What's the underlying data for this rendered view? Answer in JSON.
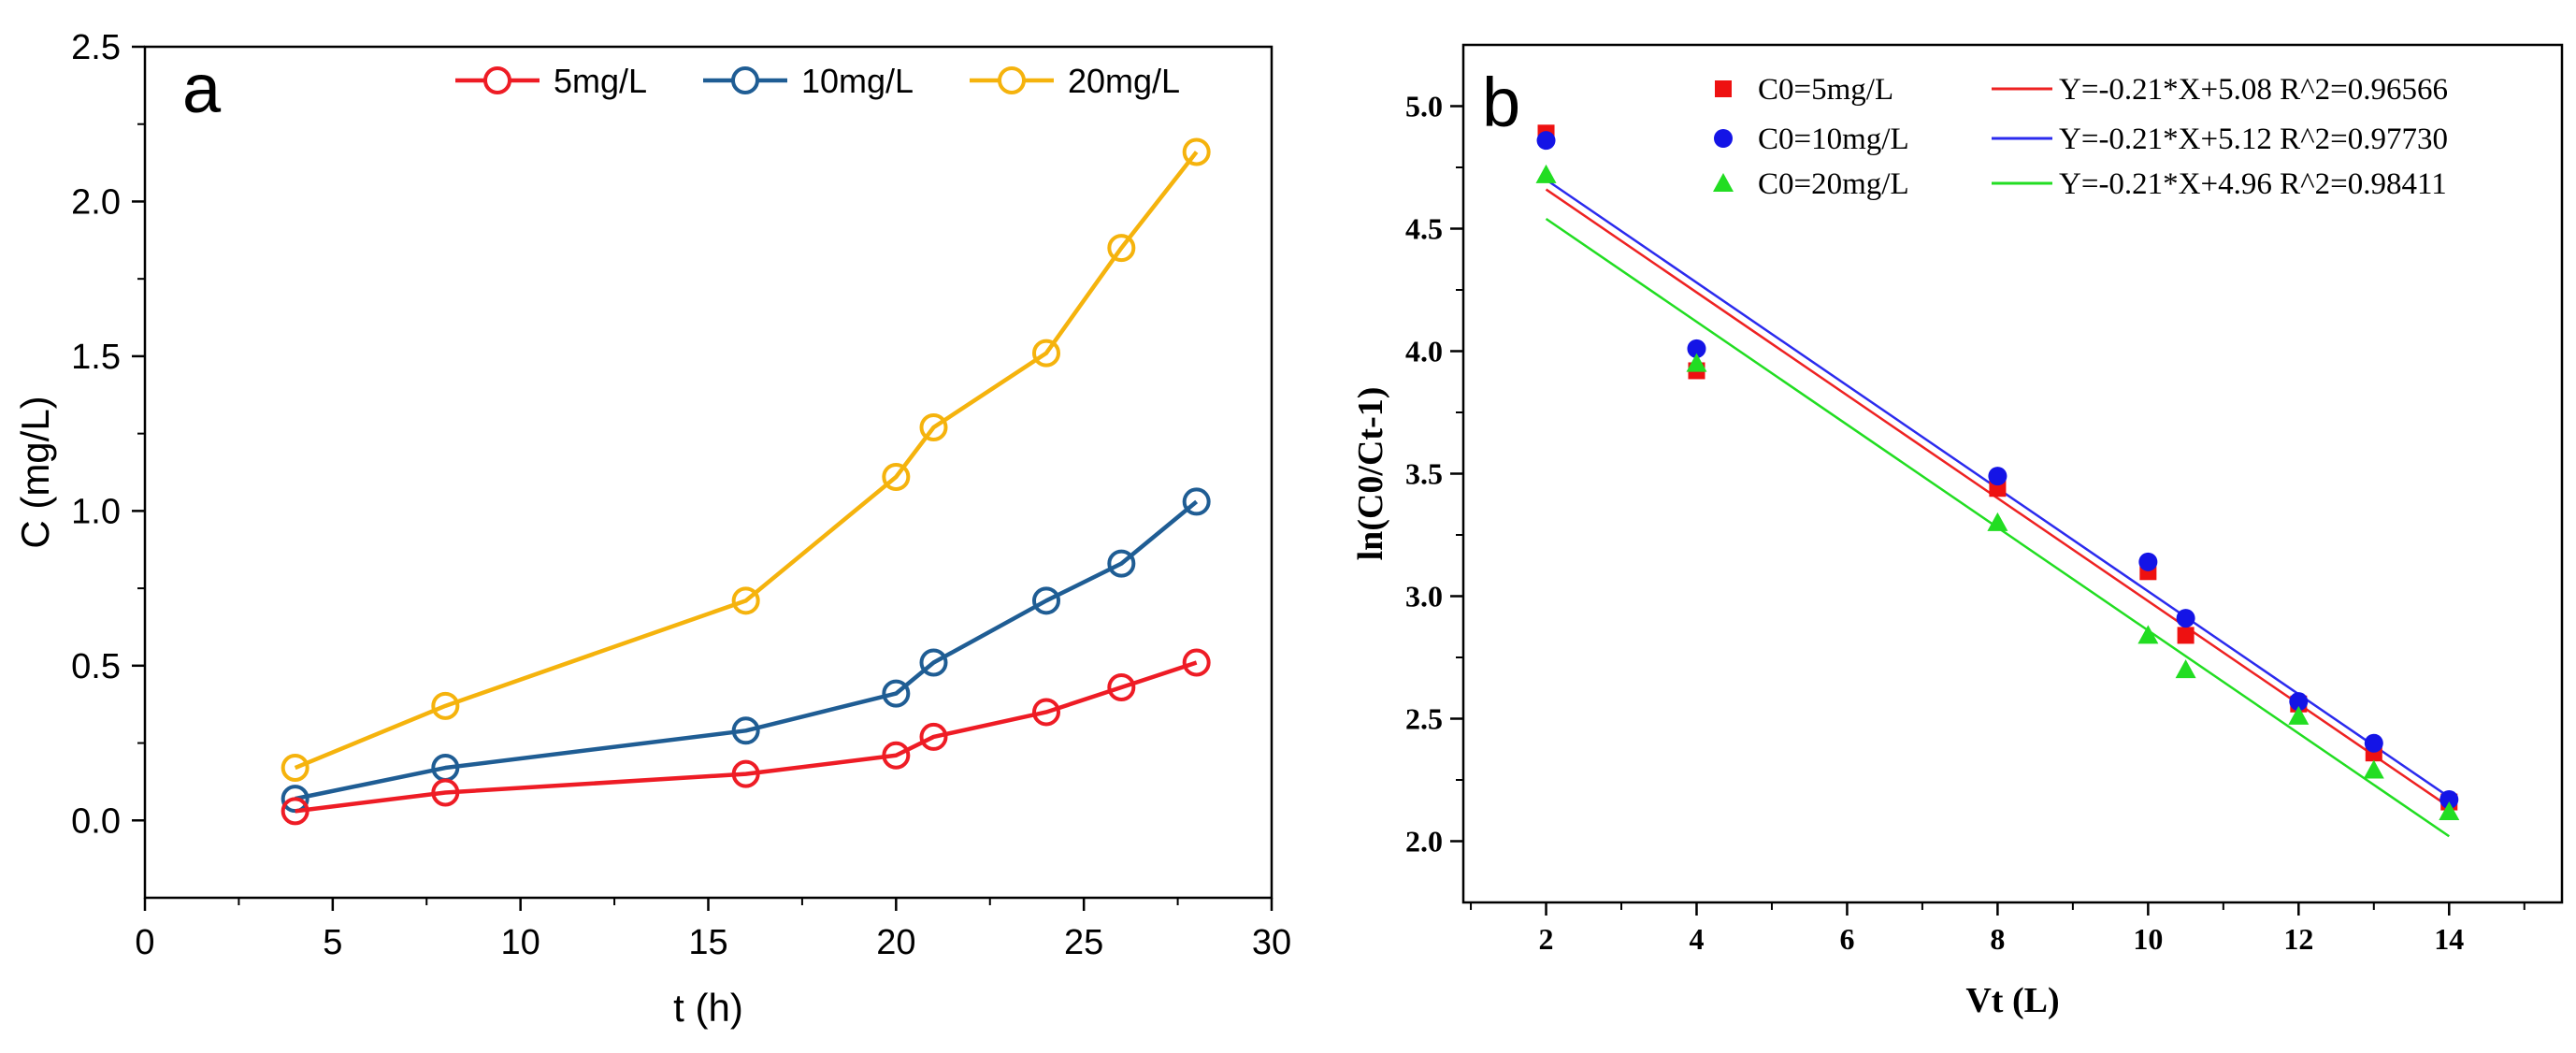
{
  "panels": {
    "a": {
      "panel_label": "a",
      "xlabel": "t (h)",
      "ylabel": "C (mg/L)",
      "xlim": [
        0,
        30
      ],
      "ylim": [
        -0.25,
        2.5
      ],
      "xticks": [
        0,
        5,
        10,
        15,
        20,
        25,
        30
      ],
      "xtick_labels": [
        "0",
        "5",
        "10",
        "15",
        "20",
        "25",
        "30"
      ],
      "yticks": [
        0,
        0.5,
        1.0,
        1.5,
        2.0,
        2.5
      ],
      "ytick_labels": [
        "0.0",
        "0.5",
        "1.0",
        "1.5",
        "2.0",
        "2.5"
      ]
    },
    "b": {
      "panel_label": "b",
      "xlabel": "Vt (L)",
      "ylabel": "ln(C0/Ct-1)",
      "xlim": [
        0.9,
        15.5
      ],
      "ylim": [
        1.75,
        5.25
      ],
      "xticks": [
        2,
        4,
        6,
        8,
        10,
        12,
        14
      ],
      "xtick_labels": [
        "2",
        "4",
        "6",
        "8",
        "10",
        "12",
        "14"
      ],
      "yticks": [
        2.0,
        2.5,
        3.0,
        3.5,
        4.0,
        4.5,
        5.0
      ],
      "ytick_labels": [
        "2.0",
        "2.5",
        "3.0",
        "3.5",
        "4.0",
        "4.5",
        "5.0"
      ]
    }
  },
  "chart_data": [
    {
      "type": "line",
      "panel": "a",
      "title": "",
      "xlabel": "t (h)",
      "ylabel": "C (mg/L)",
      "xlim": [
        0,
        30
      ],
      "ylim": [
        -0.25,
        2.5
      ],
      "legend_position": "top",
      "grid": false,
      "x": [
        4,
        8,
        16,
        20,
        21,
        24,
        26,
        28
      ],
      "series": [
        {
          "name": "5mg/L",
          "color": "#ee1c25",
          "values": [
            0.03,
            0.09,
            0.15,
            0.21,
            0.27,
            0.35,
            0.43,
            0.51
          ]
        },
        {
          "name": "10mg/L",
          "color": "#1f5d94",
          "values": [
            0.07,
            0.17,
            0.29,
            0.41,
            0.51,
            0.71,
            0.83,
            1.03
          ]
        },
        {
          "name": "20mg/L",
          "color": "#f5b30d",
          "values": [
            0.17,
            0.37,
            0.71,
            1.11,
            1.27,
            1.51,
            1.85,
            2.16
          ]
        }
      ]
    },
    {
      "type": "scatter",
      "panel": "b",
      "title": "",
      "xlabel": "Vt (L)",
      "ylabel": "ln(C0/Ct-1)",
      "xlim": [
        0.9,
        15.5
      ],
      "ylim": [
        1.75,
        5.25
      ],
      "legend_position": "top-right",
      "grid": false,
      "x": [
        2,
        4,
        8,
        10,
        10.5,
        12,
        13,
        14
      ],
      "series": [
        {
          "name": "C0=5mg/L",
          "color": "#ee1111",
          "marker": "square",
          "values": [
            4.89,
            3.92,
            3.44,
            3.1,
            2.84,
            2.56,
            2.36,
            2.16
          ]
        },
        {
          "name": "C0=10mg/L",
          "color": "#1414e6",
          "marker": "circle",
          "values": [
            4.86,
            4.01,
            3.49,
            3.14,
            2.91,
            2.57,
            2.4,
            2.17
          ]
        },
        {
          "name": "C0=20mg/L",
          "color": "#22dd22",
          "marker": "triangle",
          "values": [
            4.72,
            3.95,
            3.3,
            2.84,
            2.7,
            2.51,
            2.29,
            2.12
          ]
        }
      ],
      "fits": [
        {
          "label": "Y=-0.21*X+5.08  R^2=0.96566",
          "color": "#ee2222",
          "slope": -0.21,
          "intercept": 5.08
        },
        {
          "label": "Y=-0.21*X+5.12  R^2=0.97730",
          "color": "#2b2bee",
          "slope": -0.21,
          "intercept": 5.12
        },
        {
          "label": "Y=-0.21*X+4.96  R^2=0.98411",
          "color": "#22dd22",
          "slope": -0.21,
          "intercept": 4.96
        }
      ]
    }
  ]
}
